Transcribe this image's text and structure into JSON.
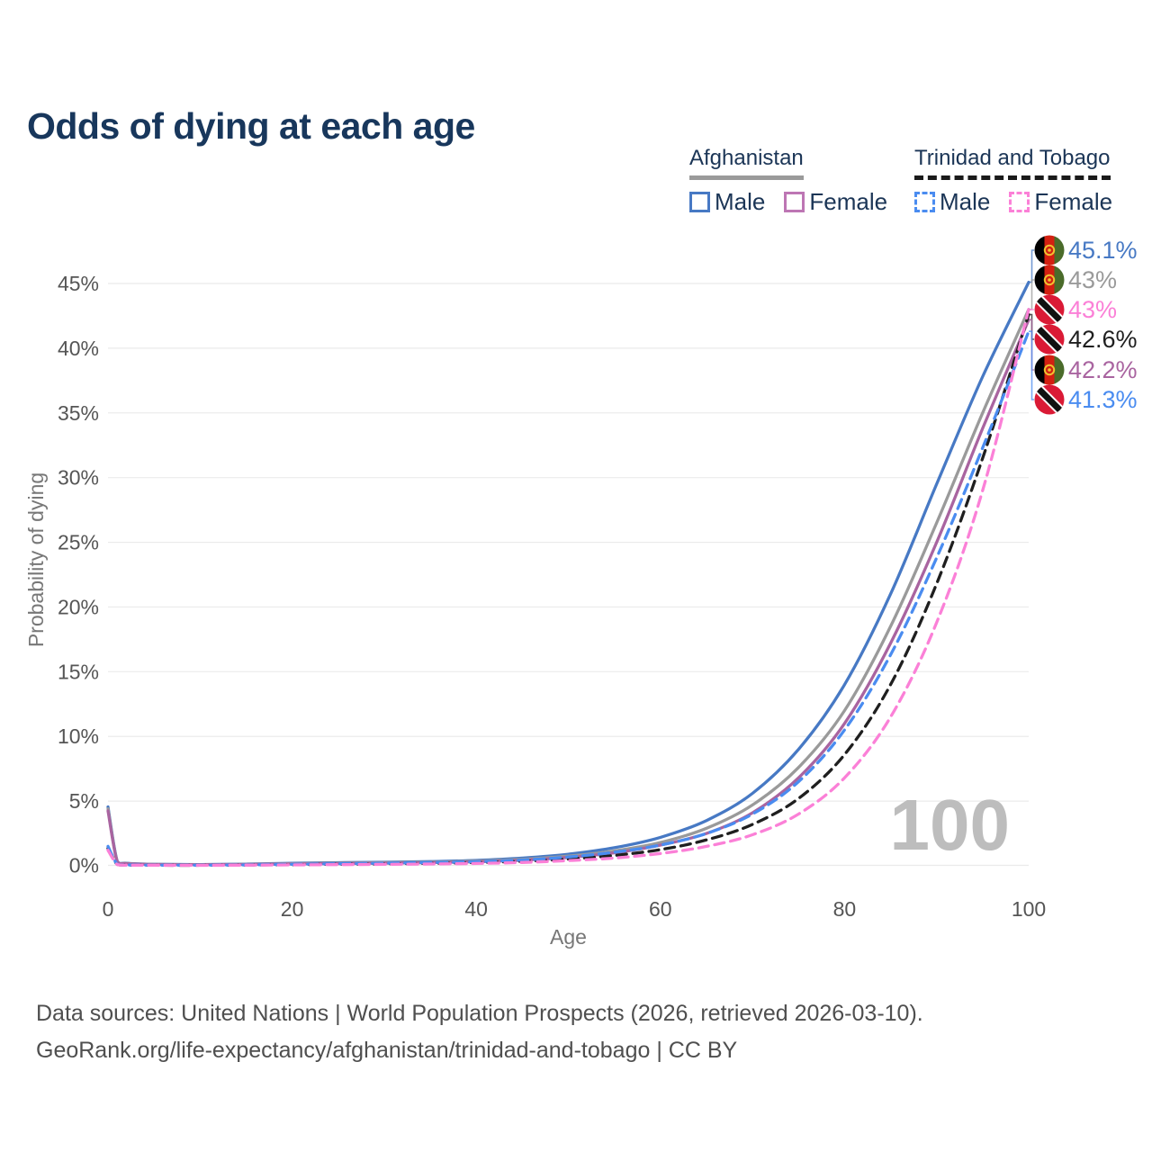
{
  "title": "Odds of dying at each age",
  "colors": {
    "title_text": "#18375c",
    "legend_text": "#1b3556",
    "tick_text": "#555555",
    "axis_label_text": "#777777",
    "gridline": "#ebebeb",
    "watermark_text": "#bdbdbd",
    "footer_text": "#4f4f4f"
  },
  "legend": {
    "groups": [
      {
        "label": "Afghanistan",
        "underline_style": "solid",
        "underline_color": "#9a9a9a",
        "items": [
          {
            "label": "Male",
            "color": "#4779c4",
            "dash": false
          },
          {
            "label": "Female",
            "color": "#bd76b4",
            "dash": false
          }
        ]
      },
      {
        "label": "Trinidad and Tobago",
        "underline_style": "dashed",
        "underline_color": "#1a1a1a",
        "items": [
          {
            "label": "Male",
            "color": "#4a8cf0",
            "dash": true
          },
          {
            "label": "Female",
            "color": "#fb80d7",
            "dash": true
          }
        ]
      }
    ]
  },
  "chart_data": {
    "type": "line",
    "title": "Odds of dying at each age",
    "xlabel": "Age",
    "ylabel": "Probability of dying",
    "xlim": [
      0,
      100
    ],
    "ylim": [
      0,
      45
    ],
    "x_ticks": [
      0,
      20,
      40,
      60,
      80,
      100
    ],
    "y_ticks": [
      0,
      5,
      10,
      15,
      20,
      25,
      30,
      35,
      40,
      45
    ],
    "y_tick_suffix": "%",
    "grid": "horizontal",
    "watermark": "100",
    "ages": [
      0,
      1,
      2,
      5,
      10,
      15,
      20,
      25,
      30,
      35,
      40,
      45,
      50,
      55,
      60,
      65,
      70,
      75,
      80,
      85,
      90,
      95,
      100
    ],
    "series": [
      {
        "name": "Afghanistan Male",
        "country": "Afghanistan",
        "sex": "Male",
        "color": "#4779c4",
        "dash": false,
        "values": [
          4.55,
          0.38,
          0.2,
          0.12,
          0.1,
          0.13,
          0.2,
          0.24,
          0.28,
          0.33,
          0.42,
          0.6,
          0.9,
          1.4,
          2.2,
          3.5,
          5.6,
          9.0,
          14.0,
          21.0,
          29.5,
          37.8,
          45.1
        ]
      },
      {
        "name": "Afghanistan All",
        "country": "Afghanistan",
        "sex": "All",
        "color": "#9a9a9a",
        "dash": false,
        "values": [
          4.4,
          0.35,
          0.18,
          0.11,
          0.09,
          0.11,
          0.17,
          0.2,
          0.24,
          0.28,
          0.36,
          0.5,
          0.75,
          1.15,
          1.8,
          2.9,
          4.7,
          7.6,
          12.0,
          18.5,
          26.5,
          35.0,
          43.0
        ]
      },
      {
        "name": "Afghanistan Female",
        "country": "Afghanistan",
        "sex": "Female",
        "color": "#a964a0",
        "dash": false,
        "values": [
          4.25,
          0.32,
          0.17,
          0.1,
          0.08,
          0.1,
          0.14,
          0.17,
          0.2,
          0.24,
          0.31,
          0.43,
          0.65,
          1.0,
          1.6,
          2.5,
          4.1,
          6.8,
          11.0,
          17.2,
          25.0,
          33.8,
          42.2
        ]
      },
      {
        "name": "Trinidad and Tobago All",
        "country": "Trinidad and Tobago",
        "sex": "All",
        "color": "#1f1f1f",
        "dash": true,
        "values": [
          1.35,
          0.11,
          0.06,
          0.045,
          0.04,
          0.06,
          0.09,
          0.12,
          0.15,
          0.19,
          0.25,
          0.35,
          0.52,
          0.8,
          1.25,
          2.0,
          3.2,
          5.2,
          8.6,
          14.0,
          21.8,
          31.5,
          42.6
        ]
      },
      {
        "name": "Trinidad and Tobago Male",
        "country": "Trinidad and Tobago",
        "sex": "Male",
        "color": "#4a8cf0",
        "dash": true,
        "values": [
          1.5,
          0.13,
          0.07,
          0.05,
          0.05,
          0.07,
          0.12,
          0.16,
          0.2,
          0.25,
          0.32,
          0.45,
          0.68,
          1.05,
          1.6,
          2.5,
          4.0,
          6.5,
          10.5,
          16.3,
          23.8,
          32.3,
          41.3
        ]
      },
      {
        "name": "Trinidad and Tobago Female",
        "country": "Trinidad and Tobago",
        "sex": "Female",
        "color": "#fb80d7",
        "dash": true,
        "values": [
          1.2,
          0.1,
          0.05,
          0.04,
          0.035,
          0.05,
          0.07,
          0.09,
          0.11,
          0.14,
          0.18,
          0.26,
          0.4,
          0.6,
          0.95,
          1.5,
          2.4,
          4.0,
          6.8,
          11.5,
          18.8,
          29.0,
          43.0
        ]
      }
    ],
    "end_labels": [
      {
        "series": "Afghanistan Male",
        "flag": "afghanistan",
        "text": "45.1%",
        "value": 45.1
      },
      {
        "series": "Afghanistan All",
        "flag": "afghanistan",
        "text": "43%",
        "value": 43
      },
      {
        "series": "Trinidad and Tobago Female",
        "flag": "trinidad",
        "text": "43%",
        "value": 43
      },
      {
        "series": "Trinidad and Tobago All",
        "flag": "trinidad",
        "text": "42.6%",
        "value": 42.6
      },
      {
        "series": "Afghanistan Female",
        "flag": "afghanistan",
        "text": "42.2%",
        "value": 42.2
      },
      {
        "series": "Trinidad and Tobago Male",
        "flag": "trinidad",
        "text": "41.3%",
        "value": 41.3
      }
    ],
    "legend_position": "top-right"
  },
  "footer": {
    "line1": "Data sources: United Nations | World Population Prospects (2026, retrieved 2026-03-10).",
    "line2": "GeoRank.org/life-expectancy/afghanistan/trinidad-and-tobago | CC BY"
  }
}
